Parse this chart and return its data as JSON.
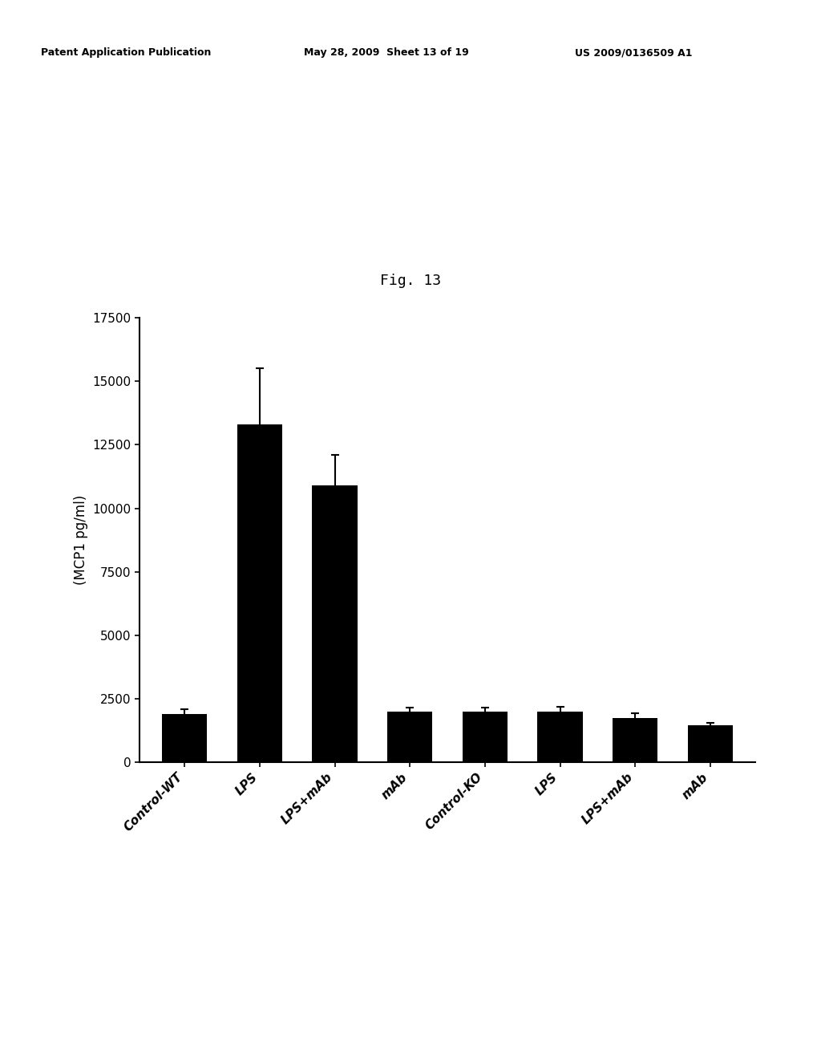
{
  "categories": [
    "Control-WT",
    "LPS",
    "LPS+mAb",
    "mAb",
    "Control-KO",
    "LPS",
    "LPS+mAb",
    "mAb"
  ],
  "values": [
    1900,
    13300,
    10900,
    2000,
    2000,
    2000,
    1750,
    1450
  ],
  "errors": [
    200,
    2200,
    1200,
    150,
    150,
    200,
    200,
    120
  ],
  "bar_color": "#000000",
  "ylabel": "(MCP1 pg/ml)",
  "ylim": [
    0,
    17500
  ],
  "yticks": [
    0,
    2500,
    5000,
    7500,
    10000,
    12500,
    15000,
    17500
  ],
  "fig_label": "Fig. 13",
  "header_left": "Patent Application Publication",
  "header_mid": "May 28, 2009  Sheet 13 of 19",
  "header_right": "US 2009/0136509 A1",
  "background_color": "#ffffff",
  "bar_width": 0.6,
  "fig_label_fontsize": 13,
  "axis_fontsize": 12,
  "tick_fontsize": 11,
  "header_fontsize": 9,
  "ylabel_fontsize": 12
}
